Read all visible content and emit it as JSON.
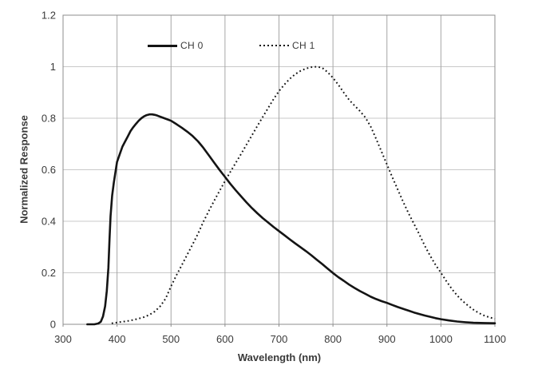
{
  "chart_data": {
    "type": "line",
    "title": "",
    "xlabel": "Wavelength (nm)",
    "ylabel": "Normalized Response",
    "xlim": [
      300,
      1100
    ],
    "ylim": [
      0,
      1.2
    ],
    "x_ticks": [
      300,
      400,
      500,
      600,
      700,
      800,
      900,
      1000,
      1100
    ],
    "x_tick_labels": [
      "300",
      "400",
      "500",
      "600",
      "700",
      "800",
      "900",
      "1000",
      "1100"
    ],
    "y_ticks": [
      0,
      0.2,
      0.4,
      0.6,
      0.8,
      1.0,
      1.2
    ],
    "y_tick_labels": [
      "0",
      "0.2",
      "0.4",
      "0.6",
      "0.8",
      "1",
      "1.2"
    ],
    "grid": true,
    "legend_position": "top-inside",
    "colors": {
      "x_grid": "#a6a6a6",
      "y_grid": "#c9c9c9",
      "axis": "#8c8c8c",
      "text": "#3a3a3a",
      "curve": "#141414"
    },
    "series": [
      {
        "id": "ch0",
        "name": "CH 0",
        "style": "solid",
        "color": "#141414",
        "width": 2.6,
        "dash": null,
        "points": [
          [
            345,
            0
          ],
          [
            358,
            0
          ],
          [
            365,
            0.003
          ],
          [
            370,
            0.01
          ],
          [
            374,
            0.03
          ],
          [
            378,
            0.07
          ],
          [
            381,
            0.13
          ],
          [
            384,
            0.22
          ],
          [
            386,
            0.33
          ],
          [
            388,
            0.42
          ],
          [
            391,
            0.5
          ],
          [
            394,
            0.55
          ],
          [
            397,
            0.59
          ],
          [
            400,
            0.63
          ],
          [
            405,
            0.66
          ],
          [
            410,
            0.69
          ],
          [
            415,
            0.71
          ],
          [
            420,
            0.73
          ],
          [
            425,
            0.75
          ],
          [
            430,
            0.765
          ],
          [
            435,
            0.778
          ],
          [
            440,
            0.79
          ],
          [
            445,
            0.8
          ],
          [
            450,
            0.807
          ],
          [
            455,
            0.812
          ],
          [
            460,
            0.815
          ],
          [
            465,
            0.815
          ],
          [
            470,
            0.813
          ],
          [
            475,
            0.81
          ],
          [
            480,
            0.806
          ],
          [
            490,
            0.798
          ],
          [
            500,
            0.79
          ],
          [
            510,
            0.777
          ],
          [
            520,
            0.763
          ],
          [
            530,
            0.748
          ],
          [
            540,
            0.731
          ],
          [
            550,
            0.71
          ],
          [
            560,
            0.685
          ],
          [
            570,
            0.656
          ],
          [
            580,
            0.627
          ],
          [
            590,
            0.599
          ],
          [
            600,
            0.572
          ],
          [
            610,
            0.545
          ],
          [
            620,
            0.52
          ],
          [
            630,
            0.496
          ],
          [
            640,
            0.473
          ],
          [
            650,
            0.451
          ],
          [
            660,
            0.431
          ],
          [
            670,
            0.412
          ],
          [
            680,
            0.395
          ],
          [
            690,
            0.378
          ],
          [
            700,
            0.362
          ],
          [
            710,
            0.346
          ],
          [
            720,
            0.33
          ],
          [
            730,
            0.314
          ],
          [
            740,
            0.299
          ],
          [
            750,
            0.284
          ],
          [
            760,
            0.268
          ],
          [
            770,
            0.251
          ],
          [
            780,
            0.234
          ],
          [
            790,
            0.216
          ],
          [
            800,
            0.199
          ],
          [
            810,
            0.183
          ],
          [
            820,
            0.169
          ],
          [
            830,
            0.154
          ],
          [
            840,
            0.141
          ],
          [
            850,
            0.129
          ],
          [
            860,
            0.118
          ],
          [
            870,
            0.107
          ],
          [
            880,
            0.098
          ],
          [
            890,
            0.09
          ],
          [
            900,
            0.083
          ],
          [
            910,
            0.075
          ],
          [
            920,
            0.067
          ],
          [
            930,
            0.06
          ],
          [
            940,
            0.053
          ],
          [
            950,
            0.046
          ],
          [
            960,
            0.04
          ],
          [
            970,
            0.034
          ],
          [
            980,
            0.029
          ],
          [
            990,
            0.024
          ],
          [
            1000,
            0.02
          ],
          [
            1015,
            0.015
          ],
          [
            1030,
            0.011
          ],
          [
            1045,
            0.008
          ],
          [
            1060,
            0.006
          ],
          [
            1080,
            0.005
          ],
          [
            1100,
            0.004
          ]
        ]
      },
      {
        "id": "ch1",
        "name": "CH 1",
        "style": "dotted",
        "color": "#141414",
        "width": 2,
        "dash": "1.8 3.2",
        "points": [
          [
            390,
            0.004
          ],
          [
            400,
            0.007
          ],
          [
            410,
            0.01
          ],
          [
            420,
            0.013
          ],
          [
            430,
            0.017
          ],
          [
            440,
            0.022
          ],
          [
            450,
            0.028
          ],
          [
            460,
            0.037
          ],
          [
            470,
            0.05
          ],
          [
            480,
            0.07
          ],
          [
            490,
            0.1
          ],
          [
            500,
            0.148
          ],
          [
            510,
            0.19
          ],
          [
            520,
            0.23
          ],
          [
            530,
            0.27
          ],
          [
            540,
            0.31
          ],
          [
            550,
            0.352
          ],
          [
            560,
            0.398
          ],
          [
            570,
            0.44
          ],
          [
            580,
            0.48
          ],
          [
            590,
            0.518
          ],
          [
            600,
            0.556
          ],
          [
            610,
            0.592
          ],
          [
            620,
            0.627
          ],
          [
            630,
            0.662
          ],
          [
            640,
            0.698
          ],
          [
            650,
            0.734
          ],
          [
            660,
            0.77
          ],
          [
            670,
            0.805
          ],
          [
            680,
            0.84
          ],
          [
            690,
            0.874
          ],
          [
            700,
            0.905
          ],
          [
            710,
            0.931
          ],
          [
            720,
            0.953
          ],
          [
            730,
            0.971
          ],
          [
            740,
            0.984
          ],
          [
            750,
            0.993
          ],
          [
            760,
            0.998
          ],
          [
            770,
            1.0
          ],
          [
            780,
            0.996
          ],
          [
            790,
            0.979
          ],
          [
            800,
            0.957
          ],
          [
            810,
            0.93
          ],
          [
            820,
            0.9
          ],
          [
            830,
            0.871
          ],
          [
            840,
            0.849
          ],
          [
            850,
            0.828
          ],
          [
            860,
            0.803
          ],
          [
            870,
            0.767
          ],
          [
            880,
            0.72
          ],
          [
            890,
            0.67
          ],
          [
            900,
            0.62
          ],
          [
            910,
            0.571
          ],
          [
            920,
            0.523
          ],
          [
            930,
            0.476
          ],
          [
            940,
            0.431
          ],
          [
            950,
            0.39
          ],
          [
            960,
            0.349
          ],
          [
            970,
            0.305
          ],
          [
            980,
            0.266
          ],
          [
            990,
            0.231
          ],
          [
            1000,
            0.2
          ],
          [
            1010,
            0.168
          ],
          [
            1020,
            0.138
          ],
          [
            1030,
            0.112
          ],
          [
            1040,
            0.091
          ],
          [
            1050,
            0.073
          ],
          [
            1060,
            0.057
          ],
          [
            1070,
            0.044
          ],
          [
            1080,
            0.034
          ],
          [
            1090,
            0.027
          ],
          [
            1100,
            0.021
          ]
        ]
      }
    ]
  }
}
